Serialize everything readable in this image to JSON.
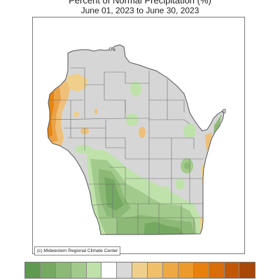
{
  "header": {
    "title": "Percent of Normal Precipitation (%)",
    "subtitle": "June 01, 2023 to June 30, 2023"
  },
  "credit": "(c) Midwestern Regional Climate Center",
  "colors": {
    "base": "#d6d6d6",
    "border": "#555555",
    "county_line": "#6e6e6e"
  },
  "legend": {
    "swatches": [
      "#5e9a4f",
      "#75a962",
      "#8cba76",
      "#a2ca8c",
      "#bfe2ab",
      "#ffffff",
      "#d9d9d9",
      "#efd08b",
      "#f0bf6a",
      "#eea945",
      "#ec9a2c",
      "#e8800d",
      "#d86d0a",
      "#c35708",
      "#a84707"
    ]
  }
}
